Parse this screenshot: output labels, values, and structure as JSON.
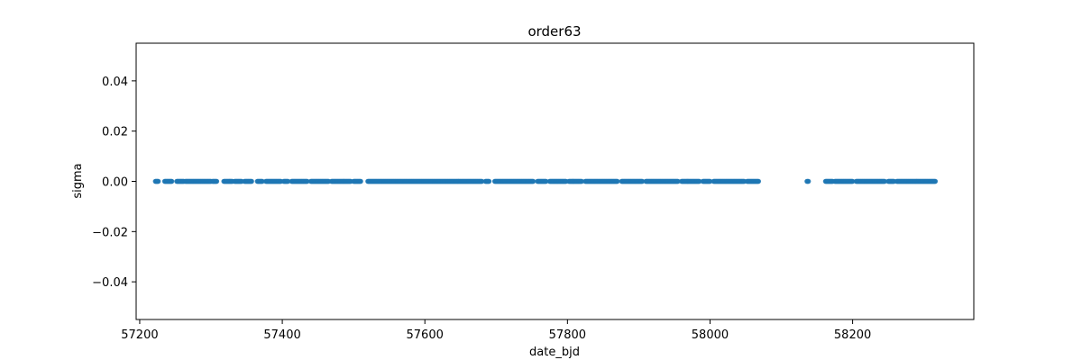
{
  "chart_data": {
    "type": "scatter",
    "title": "order63",
    "xlabel": "date_bjd",
    "ylabel": "sigma",
    "xlim": [
      57195,
      58370
    ],
    "ylim": [
      -0.055,
      0.055
    ],
    "xticks": [
      57200,
      57400,
      57600,
      57800,
      58000,
      58200
    ],
    "yticks": [
      -0.04,
      -0.02,
      0.0,
      0.02,
      0.04
    ],
    "xtick_labels": [
      "57200",
      "57400",
      "57600",
      "57800",
      "58000",
      "58200"
    ],
    "ytick_labels": [
      "−0.04",
      "−0.02",
      "0.00",
      "0.02",
      "0.04"
    ],
    "grid": false,
    "marker_color": "#1f77b4",
    "series": [
      {
        "y_value": 0.0,
        "x_ranges": [
          [
            57222,
            57226
          ],
          [
            57235,
            57245
          ],
          [
            57252,
            57262
          ],
          [
            57264,
            57300
          ],
          [
            57302,
            57308
          ],
          [
            57318,
            57330
          ],
          [
            57333,
            57343
          ],
          [
            57347,
            57357
          ],
          [
            57365,
            57372
          ],
          [
            57377,
            57398
          ],
          [
            57402,
            57408
          ],
          [
            57413,
            57435
          ],
          [
            57440,
            57465
          ],
          [
            57469,
            57496
          ],
          [
            57500,
            57510
          ],
          [
            57520,
            57680
          ],
          [
            57685,
            57690
          ],
          [
            57698,
            57752
          ],
          [
            57758,
            57770
          ],
          [
            57775,
            57798
          ],
          [
            57802,
            57820
          ],
          [
            57825,
            57870
          ],
          [
            57876,
            57905
          ],
          [
            57910,
            57955
          ],
          [
            57960,
            57985
          ],
          [
            57990,
            58000
          ],
          [
            58005,
            58048
          ],
          [
            58052,
            58068
          ],
          [
            58136,
            58138
          ],
          [
            58162,
            58172
          ],
          [
            58175,
            58200
          ],
          [
            58205,
            58245
          ],
          [
            58250,
            58258
          ],
          [
            58262,
            58316
          ]
        ],
        "points_per_day": 1.2
      }
    ]
  }
}
